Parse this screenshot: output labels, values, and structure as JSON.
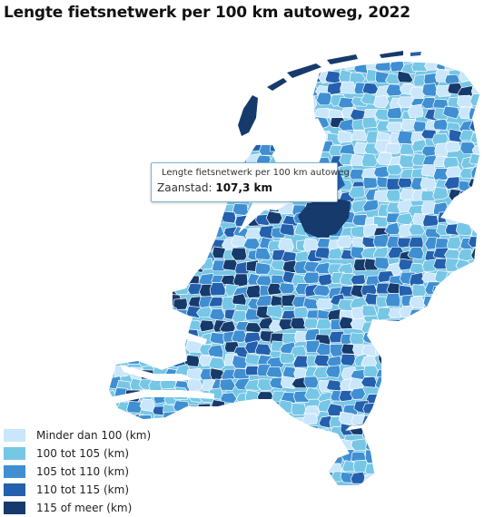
{
  "title": "Lengte fietsnetwerk per 100 km autoweg, 2022",
  "colors": {
    "c1": "#c9e6fb",
    "c2": "#76c6e6",
    "c3": "#3f8fd2",
    "c4": "#2460ad",
    "c5": "#163a6b",
    "border": "#ffffff"
  },
  "legend": [
    {
      "label": "Minder dan 100 (km)",
      "color": "#c9e6fb"
    },
    {
      "label": "100 tot 105 (km)",
      "color": "#76c6e6"
    },
    {
      "label": "105 tot 110 (km)",
      "color": "#3f8fd2"
    },
    {
      "label": "110 tot 115 (km)",
      "color": "#2460ad"
    },
    {
      "label": "115 of meer (km)",
      "color": "#163a6b"
    }
  ],
  "tooltip": {
    "series": "Lengte fietsnetwerk per 100 km autoweg",
    "region": "Zaanstad:",
    "value": "107,3 km",
    "dot_color": "#3f8fd2"
  }
}
